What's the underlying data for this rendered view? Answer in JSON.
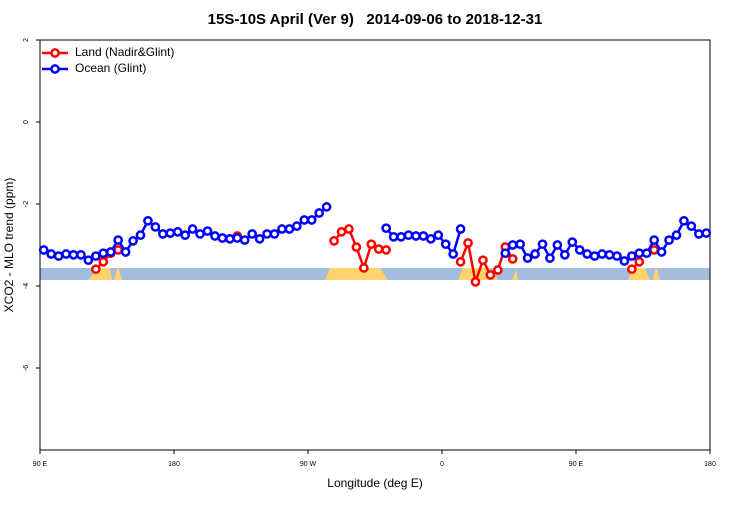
{
  "chart_data": {
    "type": "line",
    "title": "15S-10S April (Ver 9)   2014-09-06 to 2018-12-31",
    "xlabel": "Longitude (deg E)",
    "ylabel": "XCO2 - MLO trend (ppm)",
    "x": [
      92.5,
      97.5,
      102.5,
      107.5,
      112.5,
      117.5,
      122.5,
      127.5,
      132.5,
      137.5,
      142.5,
      147.5,
      152.5,
      157.5,
      162.5,
      167.5,
      172.5,
      177.5,
      182.5,
      187.5,
      192.5,
      197.5,
      202.5,
      207.5,
      212.5,
      217.5,
      222.5,
      227.5,
      232.5,
      237.5,
      242.5,
      247.5,
      252.5,
      257.5,
      262.5,
      267.5,
      272.5,
      277.5,
      282.5,
      287.5,
      292.5,
      297.5,
      302.5,
      307.5,
      312.5,
      317.5,
      322.5,
      327.5,
      332.5,
      337.5,
      342.5,
      347.5,
      352.5,
      357.5,
      362.5,
      367.5,
      372.5,
      377.5,
      382.5,
      387.5,
      392.5,
      397.5,
      402.5,
      407.5,
      412.5,
      417.5,
      422.5,
      427.5,
      432.5,
      437.5,
      442.5,
      447.5,
      452.5,
      457.5,
      462.5,
      467.5,
      472.5,
      477.5,
      482.5,
      487.5,
      492.5,
      497.5,
      502.5,
      507.5,
      512.5,
      517.5,
      522.5,
      527.5,
      532.5,
      537.5
    ],
    "series": [
      {
        "name": "Land (Nadir&Glint)",
        "color": "#ff0000",
        "values": [
          null,
          null,
          null,
          null,
          null,
          null,
          null,
          -3.59,
          -3.41,
          -3.2,
          -3.12,
          null,
          null,
          null,
          null,
          null,
          null,
          null,
          null,
          null,
          null,
          null,
          null,
          null,
          null,
          null,
          -2.78,
          null,
          null,
          null,
          null,
          null,
          null,
          null,
          null,
          null,
          null,
          null,
          null,
          -2.9,
          -2.68,
          -2.61,
          -3.05,
          -3.56,
          -2.98,
          -3.1,
          -3.12,
          null,
          null,
          null,
          null,
          null,
          null,
          null,
          null,
          null,
          -3.41,
          -2.95,
          -3.9,
          -3.37,
          -3.73,
          -3.61,
          -3.05,
          -3.34,
          null,
          null,
          null,
          null,
          null,
          null,
          null,
          null,
          null,
          null,
          null,
          null,
          null,
          null,
          null,
          -3.59,
          -3.41,
          null,
          -3.12,
          null,
          null,
          null,
          null,
          null,
          null,
          null
        ]
      },
      {
        "name": "Ocean (Glint)",
        "color": "#0000ff",
        "values": [
          -3.12,
          -3.22,
          -3.27,
          -3.22,
          -3.24,
          -3.24,
          -3.37,
          -3.27,
          -3.2,
          -3.17,
          -2.88,
          -3.17,
          -2.9,
          -2.76,
          -2.41,
          -2.56,
          -2.73,
          -2.71,
          -2.68,
          -2.76,
          -2.61,
          -2.73,
          -2.66,
          -2.78,
          -2.83,
          -2.85,
          -2.83,
          -2.88,
          -2.73,
          -2.85,
          -2.73,
          -2.73,
          -2.61,
          -2.61,
          -2.54,
          -2.39,
          -2.39,
          -2.22,
          -2.07,
          null,
          null,
          null,
          null,
          null,
          null,
          null,
          -2.59,
          -2.8,
          -2.8,
          -2.76,
          -2.78,
          -2.78,
          -2.85,
          -2.76,
          -2.98,
          -3.22,
          -2.61,
          null,
          null,
          null,
          null,
          null,
          -3.2,
          -3.0,
          -2.98,
          -3.32,
          -3.22,
          -2.98,
          -3.32,
          -3.0,
          -3.24,
          -2.93,
          -3.12,
          -3.22,
          -3.27,
          -3.22,
          -3.24,
          -3.27,
          -3.39,
          -3.27,
          -3.2,
          -3.2,
          -2.88,
          -3.17,
          -2.88,
          -2.76,
          -2.41,
          -2.54,
          -2.73,
          -2.71
        ]
      }
    ],
    "xlim": [
      90,
      540
    ],
    "ylim": [
      -8,
      2
    ],
    "xticks": [
      {
        "value": 90,
        "label": "90 E"
      },
      180,
      {
        "value": 270,
        "label": "90 W"
      },
      {
        "value": 360,
        "label": "0"
      },
      {
        "value": 450,
        "label": "90 E"
      },
      {
        "value": 540,
        "label": "180"
      }
    ],
    "yticks": [
      -6,
      -4,
      -2,
      0,
      2
    ],
    "legend": "top-left"
  }
}
